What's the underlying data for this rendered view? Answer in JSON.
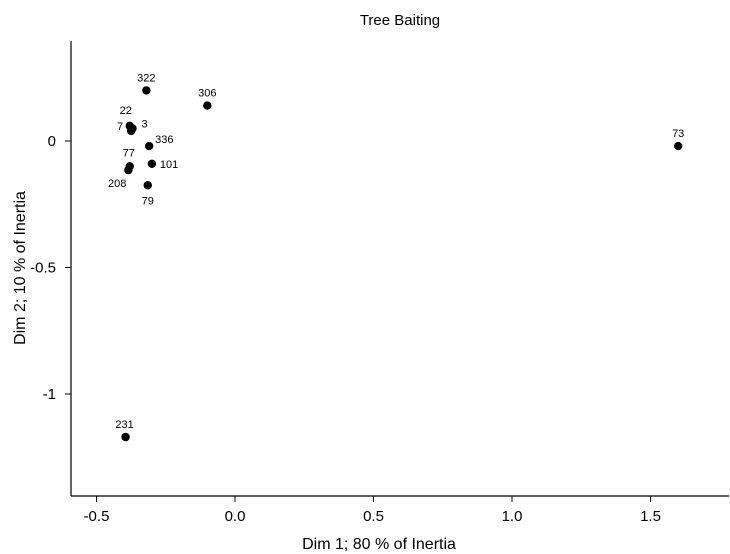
{
  "chart_data": {
    "type": "scatter",
    "title": "Tree Baiting",
    "xlabel": "Dim 1; 80 % of Inertia",
    "ylabel": "Dim 2; 10 % of Inertia",
    "xlim": [
      -0.6,
      1.78
    ],
    "ylim": [
      -1.4,
      0.4
    ],
    "xticks": [
      -0.5,
      0.0,
      0.5,
      1.0,
      1.5
    ],
    "xtick_labels": [
      "-0.5",
      "0.0",
      "0.5",
      "1.0",
      "1.5"
    ],
    "yticks": [
      0,
      -0.5,
      -1
    ],
    "ytick_labels": [
      "0",
      "-0.5",
      "-1"
    ],
    "grid": false,
    "points": [
      {
        "label": "322",
        "x": -0.32,
        "y": 0.2
      },
      {
        "label": "306",
        "x": -0.1,
        "y": 0.14
      },
      {
        "label": "22",
        "x": -0.38,
        "y": 0.06
      },
      {
        "label": "7",
        "x": -0.375,
        "y": 0.04
      },
      {
        "label": "3",
        "x": -0.37,
        "y": 0.05
      },
      {
        "label": "336",
        "x": -0.31,
        "y": -0.02
      },
      {
        "label": "101",
        "x": -0.3,
        "y": -0.09
      },
      {
        "label": "77",
        "x": -0.38,
        "y": -0.1
      },
      {
        "label": "208",
        "x": -0.385,
        "y": -0.115
      },
      {
        "label": "79",
        "x": -0.315,
        "y": -0.175
      },
      {
        "label": "73",
        "x": 1.6,
        "y": -0.02
      },
      {
        "label": "231",
        "x": -0.395,
        "y": -1.17
      }
    ]
  }
}
